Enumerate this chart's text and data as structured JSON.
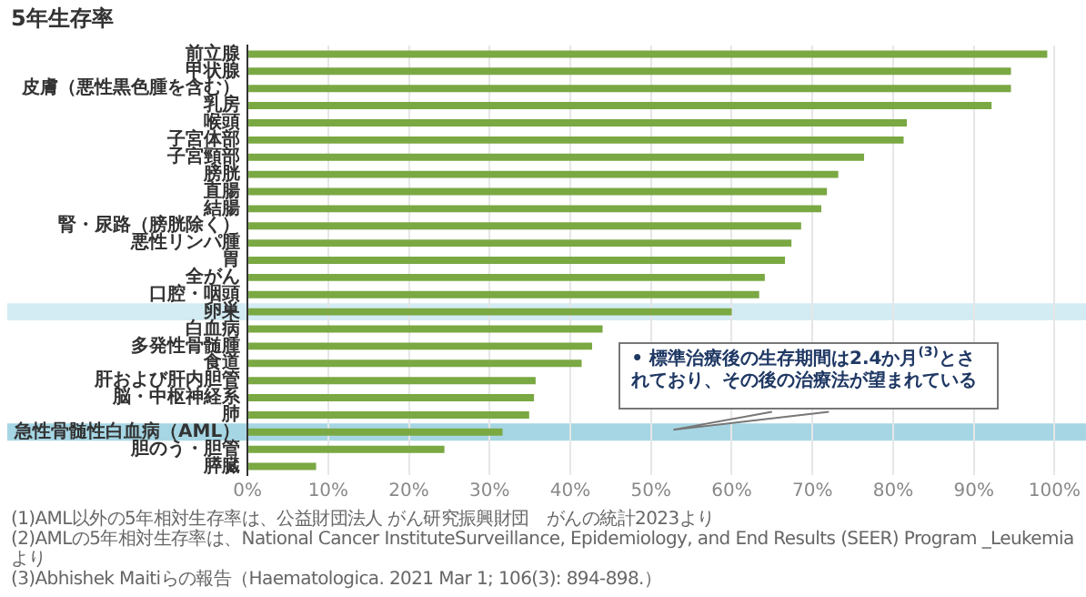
{
  "chart_data": {
    "type": "bar",
    "orientation": "horizontal",
    "title": "5年生存率",
    "categories": [
      "前立腺",
      "甲状腺",
      "皮膚（悪性黒色腫を含む）",
      "乳房",
      "喉頭",
      "子宮体部",
      "子宮頸部",
      "膀胱",
      "直腸",
      "結腸",
      "腎・尿路（膀胱除く）",
      "悪性リンパ腫",
      "胃",
      "全がん",
      "口腔・咽頭",
      "卵巣",
      "白血病",
      "多発性骨髄腫",
      "食道",
      "肝および肝内胆管",
      "脳・中枢神経系",
      "肺",
      "急性骨髄性白血病（AML）",
      "胆のう・胆管",
      "膵臓"
    ],
    "values": [
      99.1,
      94.6,
      94.6,
      92.2,
      81.7,
      81.3,
      76.4,
      73.2,
      71.8,
      71.1,
      68.6,
      67.4,
      66.6,
      64.1,
      63.4,
      60.0,
      44.0,
      42.7,
      41.4,
      35.7,
      35.5,
      34.9,
      31.6,
      24.4,
      8.5
    ],
    "color": "#7aa843",
    "xlim": [
      0,
      100
    ],
    "xticks": [
      {
        "value": 0,
        "label": "0%"
      },
      {
        "value": 10,
        "label": "10%"
      },
      {
        "value": 20,
        "label": "20%"
      },
      {
        "value": 30,
        "label": "30%"
      },
      {
        "value": 40,
        "label": "40%"
      },
      {
        "value": 50,
        "label": "50%"
      },
      {
        "value": 60,
        "label": "60%"
      },
      {
        "value": 70,
        "label": "70%"
      },
      {
        "value": 80,
        "label": "80%"
      },
      {
        "value": 90,
        "label": "90%"
      },
      {
        "value": 100,
        "label": "100%"
      }
    ],
    "grid": "x",
    "bands": [
      {
        "axis": "y",
        "from": "卵巣",
        "to": "卵巣",
        "color": "#d3ebf3"
      },
      {
        "axis": "y",
        "from": "急性骨髄性白血病（AML）",
        "to": "急性骨髄性白血病（AML）",
        "color": "#a6d6e4"
      }
    ],
    "annotations": [
      "• 標準治療後の生存期間は2.4か月$^{(3)}$とされており、その後の治療法が望まれている",
      "(1)AML以外の5年相対生存率は、公益財団法人 がん研究振興財団　がんの統計2023より",
      "(2)AMLの5年相対生存率は、National Cancer InstituteSurveillance, Epidemiology, and End Results (SEER) Program _Leukemia より",
      "(3)Abhishek Maitiらの報告（Haematologica. 2021 Mar 1; 106(3): 894-898.）"
    ]
  }
}
